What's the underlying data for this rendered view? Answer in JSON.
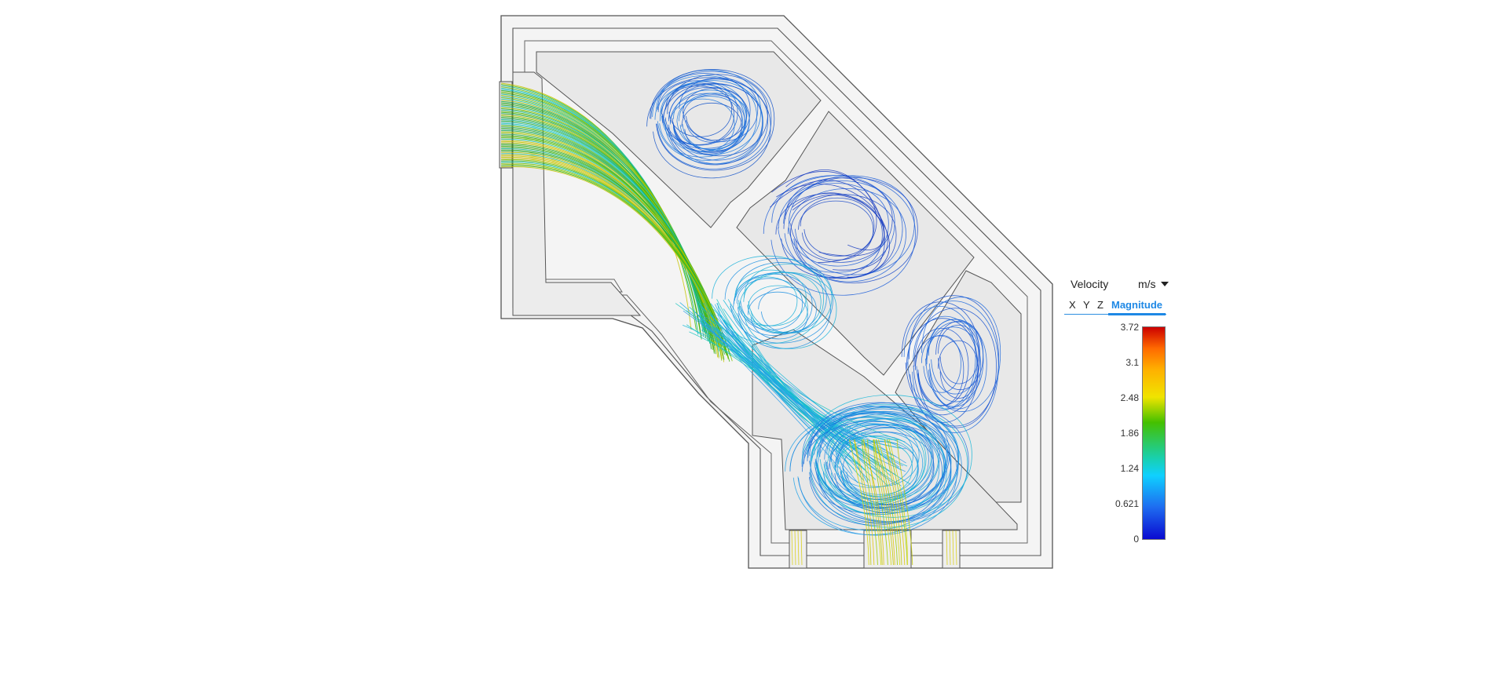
{
  "legend": {
    "quantity": "Velocity",
    "unit": "m/s",
    "tabs": [
      {
        "label": "X",
        "active": false
      },
      {
        "label": "Y",
        "active": false
      },
      {
        "label": "Z",
        "active": false
      },
      {
        "label": "Magnitude",
        "active": true
      }
    ],
    "ticks": [
      "3.72",
      "3.1",
      "2.48",
      "1.86",
      "1.24",
      "0.621",
      "0"
    ],
    "min": 0,
    "max": 3.72
  },
  "colors": {
    "housing_fill": "#f4f4f4",
    "chamber_fill": "#e8e8e8",
    "outline": "#555555",
    "accent": "#1e88e5"
  }
}
